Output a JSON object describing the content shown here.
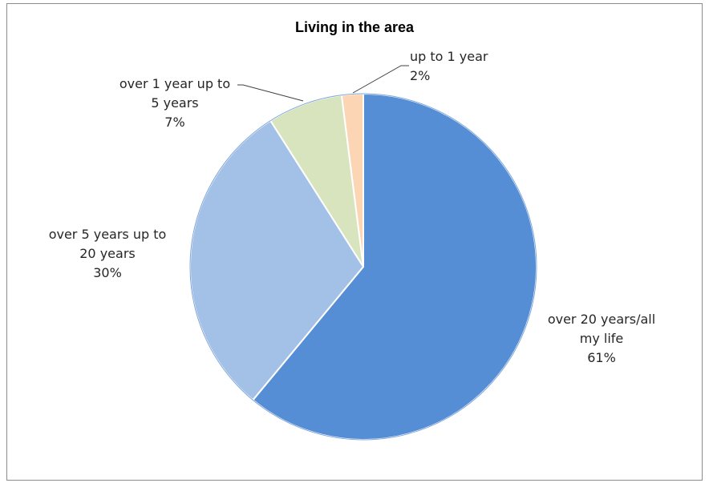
{
  "chart_data": {
    "type": "pie",
    "title": "Living in the area",
    "categories": [
      "over 20 years/all my life",
      "over 5 years up to 20 years",
      "over 1 year up to 5 years",
      "up to 1 year"
    ],
    "values": [
      61,
      30,
      7,
      2
    ],
    "data_labels": [
      {
        "lines": [
          "over 20 years/all",
          "my life",
          "61%"
        ]
      },
      {
        "lines": [
          "over 5 years up to",
          "20 years",
          "30%"
        ]
      },
      {
        "lines": [
          "over 1 year up to",
          "5 years",
          "7%"
        ]
      },
      {
        "lines": [
          "up to 1 year",
          "2%"
        ]
      }
    ],
    "colors": [
      "#558ed5",
      "#a3c0e6",
      "#d7e4bd",
      "#fcd5b5"
    ],
    "legend": "none"
  }
}
